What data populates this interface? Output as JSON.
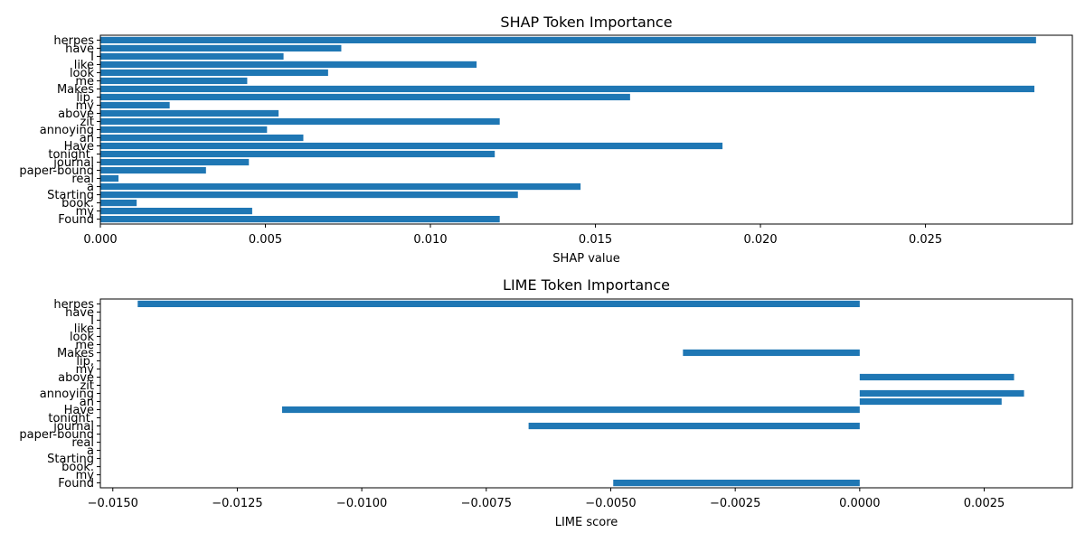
{
  "chart_data": [
    {
      "type": "bar",
      "orientation": "horizontal",
      "title": "SHAP Token Importance",
      "xlabel": "SHAP value",
      "ylabel": "",
      "xlim": [
        0.0,
        0.02945
      ],
      "xticks": [
        "0.000",
        "0.005",
        "0.010",
        "0.015",
        "0.020",
        "0.025"
      ],
      "xtick_values": [
        0.0,
        0.005,
        0.01,
        0.015,
        0.02,
        0.025
      ],
      "grid": false,
      "bar_color": "#1f77b4",
      "categories": [
        "herpes",
        "have",
        "I",
        "like",
        "look",
        "me",
        "Makes",
        "lip,",
        "my",
        "above",
        "zit",
        "annoying",
        "an",
        "Have",
        "tonight.",
        "journal",
        "paper-bound",
        "real",
        "a",
        "Starting",
        "book.",
        "my",
        "Found"
      ],
      "values": [
        0.02835,
        0.0073,
        0.00555,
        0.0114,
        0.0069,
        0.00445,
        0.0283,
        0.01605,
        0.0021,
        0.0054,
        0.0121,
        0.00505,
        0.00615,
        0.01885,
        0.01195,
        0.0045,
        0.0032,
        0.00055,
        0.01455,
        0.01265,
        0.0011,
        0.0046,
        0.0121
      ]
    },
    {
      "type": "bar",
      "orientation": "horizontal",
      "title": "LIME Token Importance",
      "xlabel": "LIME score",
      "ylabel": "",
      "xlim": [
        -0.01525,
        0.00427
      ],
      "xticks": [
        "−0.0150",
        "−0.0125",
        "−0.0100",
        "−0.0075",
        "−0.0050",
        "−0.0025",
        "0.0000",
        "0.0025"
      ],
      "xtick_values": [
        -0.015,
        -0.0125,
        -0.01,
        -0.0075,
        -0.005,
        -0.0025,
        0.0,
        0.0025
      ],
      "grid": false,
      "bar_color": "#1f77b4",
      "categories": [
        "herpes",
        "have",
        "I",
        "like",
        "look",
        "me",
        "Makes",
        "lip,",
        "my",
        "above",
        "zit",
        "annoying",
        "an",
        "Have",
        "tonight.",
        "journal",
        "paper-bound",
        "real",
        "a",
        "Starting",
        "book.",
        "my",
        "Found"
      ],
      "values": [
        -0.0145,
        0,
        0,
        0,
        0,
        0,
        -0.00355,
        0,
        0,
        0.0031,
        0,
        0.0033,
        0.00285,
        -0.0116,
        0,
        -0.00665,
        0,
        0,
        0,
        0,
        0,
        0,
        -0.00495
      ]
    }
  ]
}
